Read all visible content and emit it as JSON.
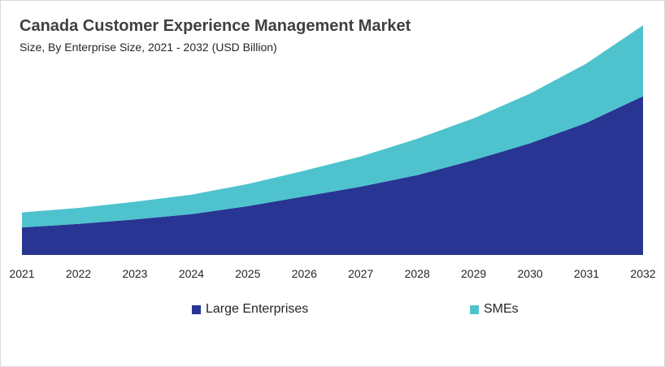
{
  "title": "Canada Customer Experience Management Market",
  "subtitle": "Size, By Enterprise Size, 2021 - 2032 (USD Billion)",
  "colors": {
    "large_enterprises": "#283593",
    "smes": "#4ec3ce",
    "background": "#ffffff"
  },
  "legend_items": [
    "Large Enterprises",
    "SMEs"
  ],
  "chart_data": {
    "type": "area",
    "stacked": true,
    "title": "Canada Customer Experience Management Market",
    "subtitle": "Size, By Enterprise Size, 2021 - 2032 (USD Billion)",
    "xlabel": "",
    "ylabel": "",
    "x": [
      "2021",
      "2022",
      "2023",
      "2024",
      "2025",
      "2026",
      "2027",
      "2028",
      "2029",
      "2030",
      "2031",
      "2032"
    ],
    "series": [
      {
        "name": "Large Enterprises",
        "values": [
          15.5,
          17.5,
          20.0,
          23.0,
          27.5,
          33.0,
          38.5,
          45.0,
          53.5,
          63.0,
          74.5,
          89.5
        ]
      },
      {
        "name": "SMEs",
        "values": [
          8.5,
          9.0,
          10.0,
          11.0,
          12.5,
          14.5,
          17.0,
          20.5,
          23.5,
          28.0,
          33.5,
          40.0
        ]
      }
    ],
    "ylim": [
      0,
      130
    ],
    "grid": false,
    "legend_position": "bottom",
    "y_axis_visible": false
  }
}
